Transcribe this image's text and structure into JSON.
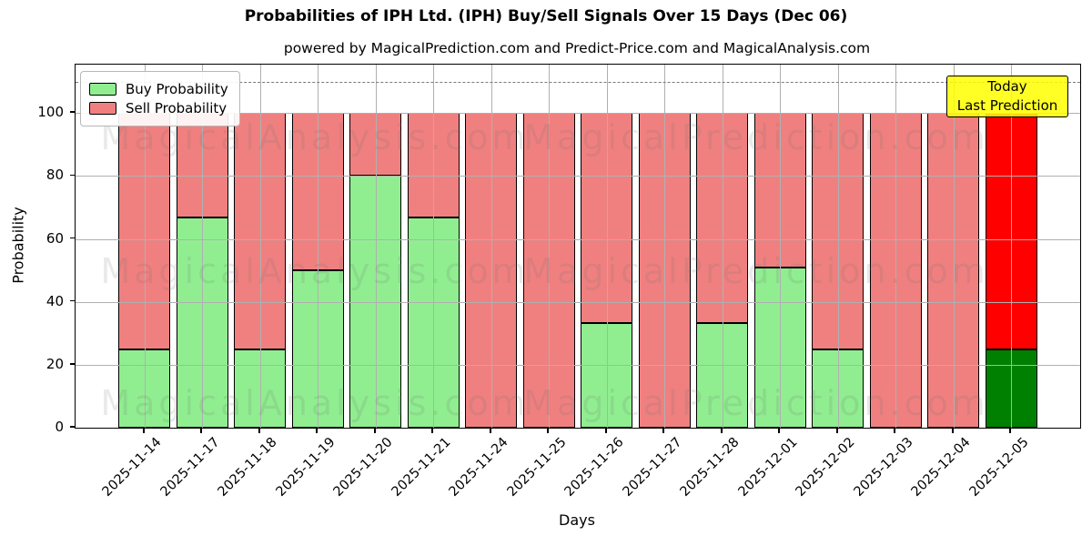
{
  "title": "Probabilities of IPH Ltd. (IPH) Buy/Sell Signals Over 15 Days (Dec 06)",
  "subtitle": "powered by MagicalPrediction.com and Predict-Price.com and MagicalAnalysis.com",
  "legend": {
    "buy_label": "Buy Probability",
    "sell_label": "Sell Probability"
  },
  "annotation_box": {
    "line1": "Today",
    "line2": "Last Prediction",
    "bg_color": "#FFFF00"
  },
  "watermarks": {
    "left_text": "MagicalAnalysis.com",
    "right_text": "MagicalPrediction.com"
  },
  "colors": {
    "buy": "#90EE90",
    "sell": "#F08080",
    "buy_today": "#008000",
    "sell_today": "#FF0000",
    "bar_edge": "#000000",
    "grid": "#b0b0b0",
    "dashed_line": "#7a7a7a"
  },
  "chart_data": {
    "type": "bar",
    "stacked": true,
    "title": "Probabilities of IPH Ltd. (IPH) Buy/Sell Signals Over 15 Days (Dec 06)",
    "xlabel": "Days",
    "ylabel": "Probability",
    "categories": [
      "2025-11-14",
      "2025-11-17",
      "2025-11-18",
      "2025-11-19",
      "2025-11-20",
      "2025-11-21",
      "2025-11-24",
      "2025-11-25",
      "2025-11-26",
      "2025-11-27",
      "2025-11-28",
      "2025-12-01",
      "2025-12-02",
      "2025-12-03",
      "2025-12-04",
      "2025-12-05"
    ],
    "series": [
      {
        "name": "Buy Probability",
        "values": [
          25,
          66.7,
          25,
          50,
          80,
          66.7,
          0,
          0,
          33.3,
          0,
          33.3,
          51,
          25,
          0,
          0,
          25
        ]
      },
      {
        "name": "Sell Probability",
        "values": [
          75,
          33.3,
          75,
          50,
          20,
          33.3,
          100,
          100,
          66.7,
          100,
          66.7,
          49,
          75,
          100,
          100,
          75
        ]
      }
    ],
    "bar_total": 100,
    "today_index": 15,
    "yticks": [
      0,
      20,
      40,
      60,
      80,
      100
    ],
    "ylim": [
      0,
      115.4
    ],
    "dashed_line_y": 110,
    "grid": true,
    "legend_position": "upper-left"
  }
}
